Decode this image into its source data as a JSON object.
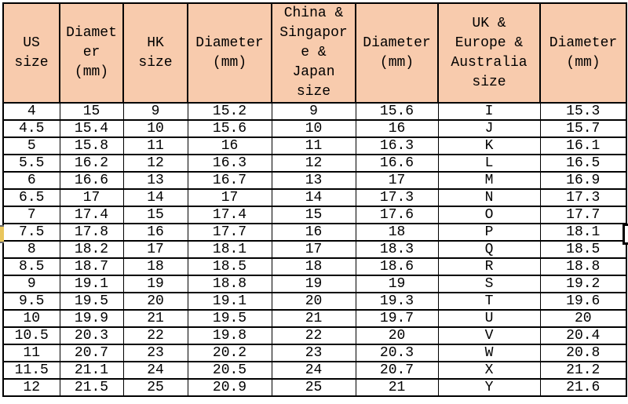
{
  "chart_data": {
    "type": "table",
    "columns": [
      {
        "label": "US size",
        "lines": [
          "US",
          "size"
        ]
      },
      {
        "label": "Diameter (mm)",
        "lines": [
          "Diamet",
          "er",
          "(mm)"
        ]
      },
      {
        "label": "HK size",
        "lines": [
          "HK",
          "size"
        ]
      },
      {
        "label": "Diameter (mm)",
        "lines": [
          "Diameter",
          "(mm)"
        ]
      },
      {
        "label": "China & Singapore & Japan size",
        "lines": [
          "China &",
          "Singapor",
          "e &",
          "Japan",
          "size"
        ]
      },
      {
        "label": "Diameter (mm)",
        "lines": [
          "Diameter",
          "(mm)"
        ]
      },
      {
        "label": "UK & Europe & Australia size",
        "lines": [
          "UK &",
          "Europe &",
          "Australia",
          "size"
        ]
      },
      {
        "label": "Diameter (mm)",
        "lines": [
          "Diameter",
          "(mm)"
        ]
      }
    ],
    "rows": [
      [
        "4",
        "15",
        "9",
        "15.2",
        "9",
        "15.6",
        "I",
        "15.3"
      ],
      [
        "4.5",
        "15.4",
        "10",
        "15.6",
        "10",
        "16",
        "J",
        "15.7"
      ],
      [
        "5",
        "15.8",
        "11",
        "16",
        "11",
        "16.3",
        "K",
        "16.1"
      ],
      [
        "5.5",
        "16.2",
        "12",
        "16.3",
        "12",
        "16.6",
        "L",
        "16.5"
      ],
      [
        "6",
        "16.6",
        "13",
        "16.7",
        "13",
        "17",
        "M",
        "16.9"
      ],
      [
        "6.5",
        "17",
        "14",
        "17",
        "14",
        "17.3",
        "N",
        "17.3"
      ],
      [
        "7",
        "17.4",
        "15",
        "17.4",
        "15",
        "17.6",
        "O",
        "17.7"
      ],
      [
        "7.5",
        "17.8",
        "16",
        "17.7",
        "16",
        "18",
        "P",
        "18.1"
      ],
      [
        "8",
        "18.2",
        "17",
        "18.1",
        "17",
        "18.3",
        "Q",
        "18.5"
      ],
      [
        "8.5",
        "18.7",
        "18",
        "18.5",
        "18",
        "18.6",
        "R",
        "18.8"
      ],
      [
        "9",
        "19.1",
        "19",
        "18.8",
        "19",
        "19",
        "S",
        "19.2"
      ],
      [
        "9.5",
        "19.5",
        "20",
        "19.1",
        "20",
        "19.3",
        "T",
        "19.6"
      ],
      [
        "10",
        "19.9",
        "21",
        "19.5",
        "21",
        "19.7",
        "U",
        "20"
      ],
      [
        "10.5",
        "20.3",
        "22",
        "19.8",
        "22",
        "20",
        "V",
        "20.4"
      ],
      [
        "11",
        "20.7",
        "23",
        "20.2",
        "23",
        "20.3",
        "W",
        "20.8"
      ],
      [
        "11.5",
        "21.1",
        "24",
        "20.5",
        "24",
        "20.7",
        "X",
        "21.2"
      ],
      [
        "12",
        "21.5",
        "25",
        "20.9",
        "25",
        "21",
        "Y",
        "21.6"
      ]
    ]
  },
  "colors": {
    "header_bg": "#F8CBAD",
    "border": "#000000",
    "row_bg": "#FFFFFF",
    "highlight_tick": "#E9C65D"
  }
}
